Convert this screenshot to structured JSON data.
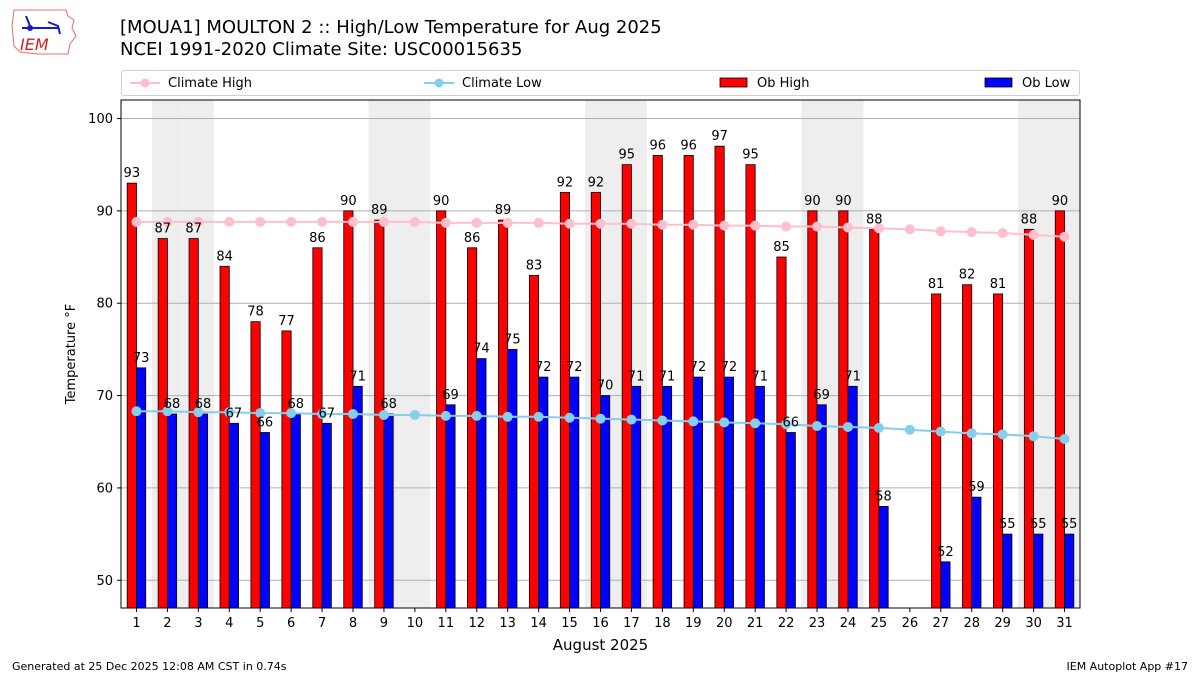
{
  "header": {
    "title_line1": "[MOUA1] MOULTON 2 :: High/Low Temperature for Aug 2025",
    "title_line2": "NCEI 1991-2020 Climate Site: USC00015635",
    "logo_text": "IEM"
  },
  "footer": {
    "left": "Generated at 25 Dec 2025 12:08 AM CST in 0.74s",
    "right": "IEM Autoplot App #17"
  },
  "legend": [
    {
      "label": "Climate High",
      "type": "line",
      "color": "#ffc0cb"
    },
    {
      "label": "Climate Low",
      "type": "line",
      "color": "#87ceeb"
    },
    {
      "label": "Ob High",
      "type": "bar",
      "color": "#ff0000"
    },
    {
      "label": "Ob Low",
      "type": "bar",
      "color": "#0000ff"
    }
  ],
  "chart_data": {
    "type": "bar",
    "title": "[MOUA1] MOULTON 2 :: High/Low Temperature for Aug 2025",
    "subtitle": "NCEI 1991-2020 Climate Site: USC00015635",
    "xlabel": "August 2025",
    "ylabel": "Temperature °F",
    "ylim": [
      47,
      102
    ],
    "xlim": [
      0.5,
      31.5
    ],
    "yticks": [
      50,
      60,
      70,
      80,
      90,
      100
    ],
    "grid": "y",
    "legend_position": "top",
    "categories": [
      1,
      2,
      3,
      4,
      5,
      6,
      7,
      8,
      9,
      10,
      11,
      12,
      13,
      14,
      15,
      16,
      17,
      18,
      19,
      20,
      21,
      22,
      23,
      24,
      25,
      26,
      27,
      28,
      29,
      30,
      31
    ],
    "weekend_days": [
      2,
      3,
      9,
      10,
      16,
      17,
      23,
      24,
      30,
      31
    ],
    "weekend_color": "#eeeeee",
    "series": [
      {
        "name": "Ob High",
        "type": "bar",
        "color": "#ff0000",
        "values": [
          93,
          87,
          87,
          84,
          78,
          77,
          86,
          90,
          89,
          null,
          90,
          86,
          89,
          83,
          92,
          92,
          95,
          96,
          96,
          97,
          95,
          85,
          90,
          90,
          88,
          null,
          81,
          82,
          81,
          88,
          90
        ]
      },
      {
        "name": "Ob Low",
        "type": "bar",
        "color": "#0000ff",
        "values": [
          73,
          68,
          68,
          67,
          66,
          68,
          67,
          71,
          68,
          null,
          69,
          74,
          75,
          72,
          72,
          70,
          71,
          71,
          72,
          72,
          71,
          66,
          69,
          71,
          58,
          null,
          52,
          59,
          55,
          55,
          55
        ]
      },
      {
        "name": "Climate High",
        "type": "line",
        "color": "#ffc0cb",
        "values": [
          88.8,
          88.8,
          88.8,
          88.8,
          88.8,
          88.8,
          88.8,
          88.8,
          88.8,
          88.8,
          88.7,
          88.7,
          88.7,
          88.7,
          88.6,
          88.6,
          88.6,
          88.5,
          88.5,
          88.4,
          88.4,
          88.3,
          88.3,
          88.2,
          88.1,
          88.0,
          87.8,
          87.7,
          87.6,
          87.4,
          87.2
        ]
      },
      {
        "name": "Climate Low",
        "type": "line",
        "color": "#87ceeb",
        "values": [
          68.3,
          68.3,
          68.2,
          68.2,
          68.1,
          68.1,
          68.0,
          68.0,
          67.9,
          67.9,
          67.8,
          67.8,
          67.7,
          67.7,
          67.6,
          67.5,
          67.4,
          67.3,
          67.2,
          67.1,
          67.0,
          66.9,
          66.7,
          66.6,
          66.5,
          66.3,
          66.1,
          65.9,
          65.8,
          65.6,
          65.3
        ]
      }
    ]
  }
}
